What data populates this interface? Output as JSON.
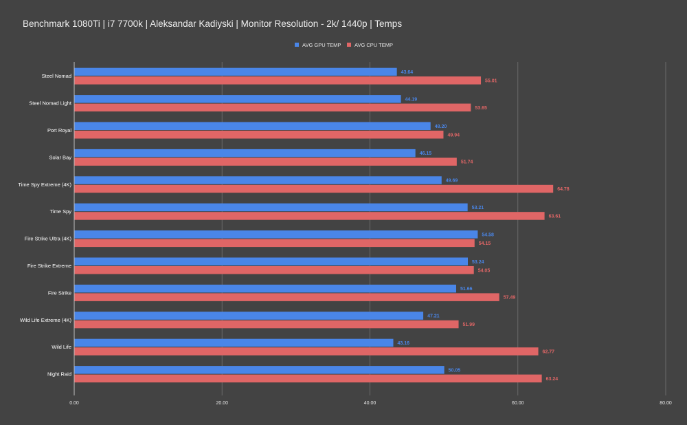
{
  "chart_data": {
    "type": "bar",
    "orientation": "horizontal",
    "title": "Benchmark 1080Ti | i7 7700k | Aleksandar Kadiyski | Monitor Resolution - 2k/ 1440p | Temps",
    "xlabel": "",
    "ylabel": "",
    "xlim": [
      0,
      80
    ],
    "xticks": [
      "0.00",
      "20.00",
      "40.00",
      "60.00",
      "80.00"
    ],
    "grid": true,
    "legend_position": "top-center",
    "categories": [
      "Steel Nomad",
      "Steel Nomad Light",
      "Port Royal",
      "Solar Bay",
      "Time Spy Extreme (4K)",
      "Time Spy",
      "Fire Strike Ultra (4K)",
      "Fire Strike Extreme",
      "Fire Strike",
      "Wild Life Extreme (4K)",
      "Wild Life",
      "Night Raid"
    ],
    "series": [
      {
        "name": "AVG GPU TEMP",
        "color": "#4a86e8",
        "values": [
          43.64,
          44.19,
          48.2,
          46.15,
          49.69,
          53.21,
          54.58,
          53.24,
          51.66,
          47.21,
          43.16,
          50.05
        ],
        "labels": [
          "43.64",
          "44.19",
          "48.20",
          "46.15",
          "49.69",
          "53.21",
          "54.58",
          "53.24",
          "51.66",
          "47.21",
          "43.16",
          "50.05"
        ]
      },
      {
        "name": "AVG CPU TEMP",
        "color": "#e06666",
        "values": [
          55.01,
          53.65,
          49.94,
          51.74,
          64.78,
          63.61,
          54.15,
          54.05,
          57.49,
          51.99,
          62.77,
          63.24
        ],
        "labels": [
          "55.01",
          "53.65",
          "49.94",
          "51.74",
          "64.78",
          "63.61",
          "54.15",
          "54.05",
          "57.49",
          "51.99",
          "62.77",
          "63.24"
        ]
      }
    ]
  }
}
